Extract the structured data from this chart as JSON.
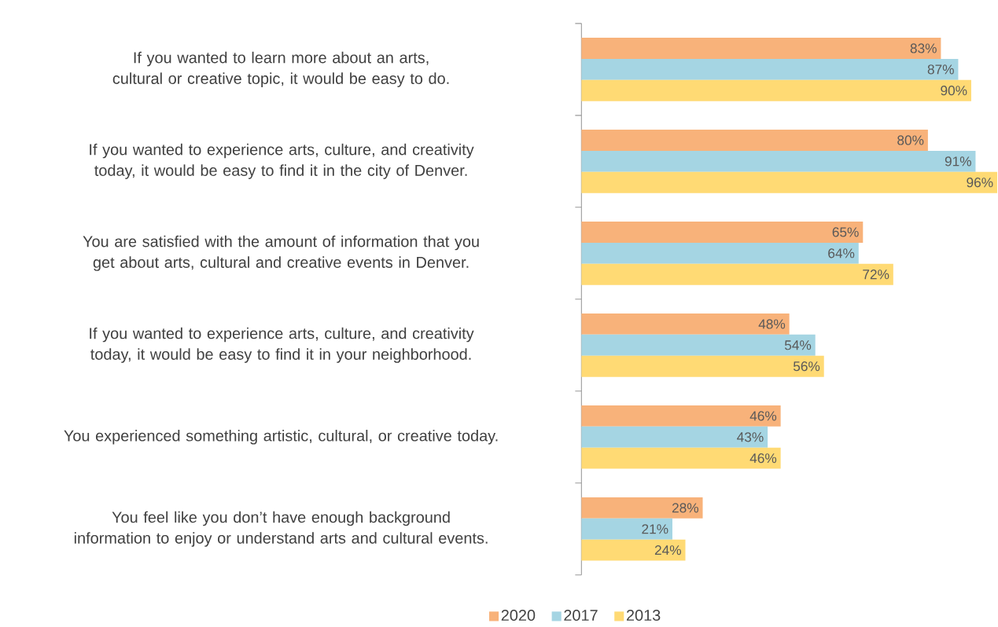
{
  "chart_data": {
    "type": "bar",
    "orientation": "horizontal",
    "legend": "bottom",
    "categories": [
      "If you wanted to learn more about an arts, cultural or creative topic, it would be easy to do.",
      "If you wanted to experience arts, culture, and creativity today, it would be easy to find it in the city of Denver.",
      "You are satisfied with the amount of information that you get about arts, cultural and creative events in Denver.",
      "If you wanted to experience arts, culture, and creativity today, it would be easy to find it in your neighborhood.",
      "You experienced something artistic, cultural, or creative today.",
      "You feel like you don’t have enough background information to enjoy or understand arts and cultural events."
    ],
    "series": [
      {
        "name": "2020",
        "color": "#f8b27a",
        "values": [
          83,
          80,
          65,
          48,
          46,
          28
        ],
        "value_labels": [
          "83%",
          "80%",
          "65%",
          "48%",
          "46%",
          "28%"
        ]
      },
      {
        "name": "2017",
        "color": "#a5d5e3",
        "values": [
          87,
          91,
          64,
          54,
          43,
          21
        ],
        "value_labels": [
          "87%",
          "91%",
          "64%",
          "54%",
          "43%",
          "21%"
        ]
      },
      {
        "name": "2013",
        "color": "#ffda74",
        "values": [
          90,
          96,
          72,
          56,
          46,
          24
        ],
        "value_labels": [
          "90%",
          "96%",
          "72%",
          "56%",
          "46%",
          "24%"
        ]
      }
    ]
  }
}
